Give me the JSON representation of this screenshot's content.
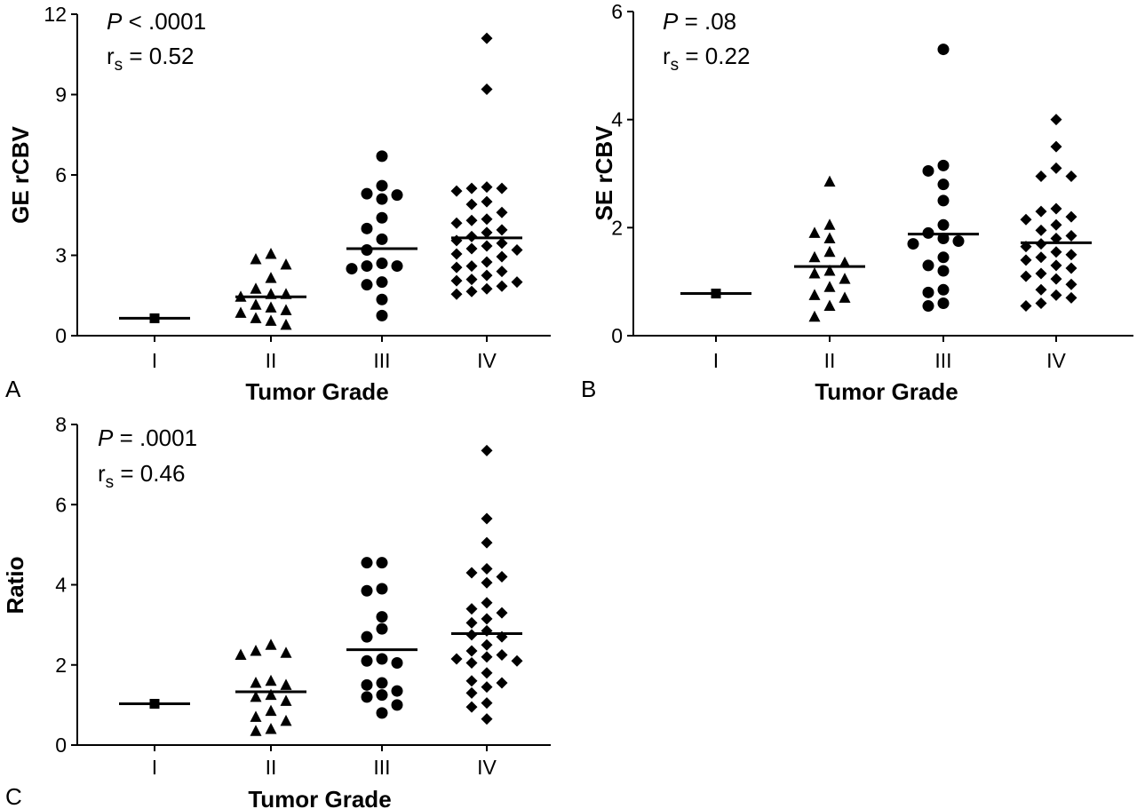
{
  "chart_data": [
    {
      "type": "scatter",
      "panel_label": "A",
      "xlabel": "Tumor Grade",
      "ylabel": "GE rCBV",
      "categories": [
        "I",
        "II",
        "III",
        "IV"
      ],
      "ylim": [
        0,
        12
      ],
      "yticks": [
        "0",
        "3",
        "6",
        "9",
        "12"
      ],
      "stat_p": ".0001",
      "stat_p_operator": "<",
      "stat_r": "0.52",
      "series": [
        {
          "category": "I",
          "marker": "square",
          "median": 0.65,
          "values": [
            0.65
          ]
        },
        {
          "category": "II",
          "marker": "triangle",
          "median": 1.45,
          "values": [
            3.05,
            2.65,
            2.15,
            2.85,
            1.75,
            1.55,
            1.45,
            1.55,
            1.15,
            1.05,
            0.95,
            0.85,
            0.65,
            0.4,
            0.55
          ]
        },
        {
          "category": "III",
          "marker": "circle",
          "median": 3.25,
          "values": [
            6.7,
            5.6,
            5.3,
            5.25,
            5.1,
            4.4,
            4.0,
            3.6,
            3.2,
            2.7,
            2.6,
            2.6,
            2.5,
            2.0,
            1.9,
            1.35,
            0.75
          ]
        },
        {
          "category": "IV",
          "marker": "diamond",
          "median": 3.65,
          "values": [
            11.1,
            9.2,
            5.55,
            5.5,
            5.5,
            5.4,
            5.0,
            4.9,
            4.6,
            4.35,
            4.3,
            4.2,
            3.95,
            3.85,
            3.7,
            3.55,
            3.45,
            3.35,
            3.25,
            3.2,
            3.05,
            2.95,
            2.75,
            2.6,
            2.55,
            2.4,
            2.25,
            2.1,
            2.05,
            2.0,
            1.85,
            1.75,
            1.65,
            1.55
          ]
        }
      ]
    },
    {
      "type": "scatter",
      "panel_label": "B",
      "xlabel": "Tumor Grade",
      "ylabel": "SE rCBV",
      "categories": [
        "I",
        "II",
        "III",
        "IV"
      ],
      "ylim": [
        0,
        6
      ],
      "yticks": [
        "0",
        "2",
        "4",
        "6"
      ],
      "stat_p": ".08",
      "stat_p_operator": "=",
      "stat_r": "0.22",
      "series": [
        {
          "category": "I",
          "marker": "square",
          "median": 0.78,
          "values": [
            0.78
          ]
        },
        {
          "category": "II",
          "marker": "triangle",
          "median": 1.28,
          "values": [
            2.85,
            2.05,
            1.9,
            1.8,
            1.55,
            1.45,
            1.35,
            1.2,
            1.15,
            1.05,
            0.9,
            0.75,
            0.7,
            0.55,
            0.35
          ]
        },
        {
          "category": "III",
          "marker": "circle",
          "median": 1.88,
          "values": [
            5.3,
            3.15,
            3.05,
            2.8,
            2.5,
            2.05,
            1.9,
            1.8,
            1.75,
            1.7,
            1.45,
            1.3,
            1.2,
            0.85,
            0.8,
            0.6,
            0.55
          ]
        },
        {
          "category": "IV",
          "marker": "diamond",
          "median": 1.72,
          "values": [
            4.0,
            3.5,
            3.1,
            2.95,
            2.95,
            2.35,
            2.3,
            2.2,
            2.15,
            2.05,
            1.95,
            1.85,
            1.8,
            1.7,
            1.65,
            1.55,
            1.5,
            1.45,
            1.4,
            1.3,
            1.25,
            1.15,
            1.1,
            1.05,
            0.95,
            0.85,
            0.75,
            0.7,
            0.6,
            0.55
          ]
        }
      ]
    },
    {
      "type": "scatter",
      "panel_label": "C",
      "xlabel": "Tumor Grade",
      "ylabel": "Ratio",
      "categories": [
        "I",
        "II",
        "III",
        "IV"
      ],
      "ylim": [
        0,
        8
      ],
      "yticks": [
        "0",
        "2",
        "4",
        "6",
        "8"
      ],
      "stat_p": ".0001",
      "stat_p_operator": "=",
      "stat_r": "0.46",
      "series": [
        {
          "category": "I",
          "marker": "square",
          "median": 1.03,
          "values": [
            1.03
          ]
        },
        {
          "category": "II",
          "marker": "triangle",
          "median": 1.33,
          "values": [
            2.5,
            2.35,
            2.3,
            2.25,
            1.6,
            1.55,
            1.5,
            1.25,
            1.2,
            1.1,
            0.85,
            0.7,
            0.6,
            0.4,
            0.35
          ]
        },
        {
          "category": "III",
          "marker": "circle",
          "median": 2.38,
          "values": [
            4.55,
            4.55,
            3.9,
            3.85,
            3.2,
            2.9,
            2.7,
            2.15,
            2.1,
            2.05,
            1.55,
            1.5,
            1.35,
            1.25,
            1.2,
            1.0,
            0.8
          ]
        },
        {
          "category": "IV",
          "marker": "diamond",
          "median": 2.78,
          "values": [
            7.35,
            5.65,
            5.05,
            4.4,
            4.3,
            4.2,
            4.05,
            3.55,
            3.4,
            3.3,
            3.15,
            3.05,
            2.85,
            2.75,
            2.7,
            2.5,
            2.35,
            2.25,
            2.2,
            2.15,
            2.1,
            2.05,
            1.8,
            1.6,
            1.55,
            1.45,
            1.3,
            1.05,
            0.95,
            0.65
          ]
        }
      ]
    }
  ]
}
